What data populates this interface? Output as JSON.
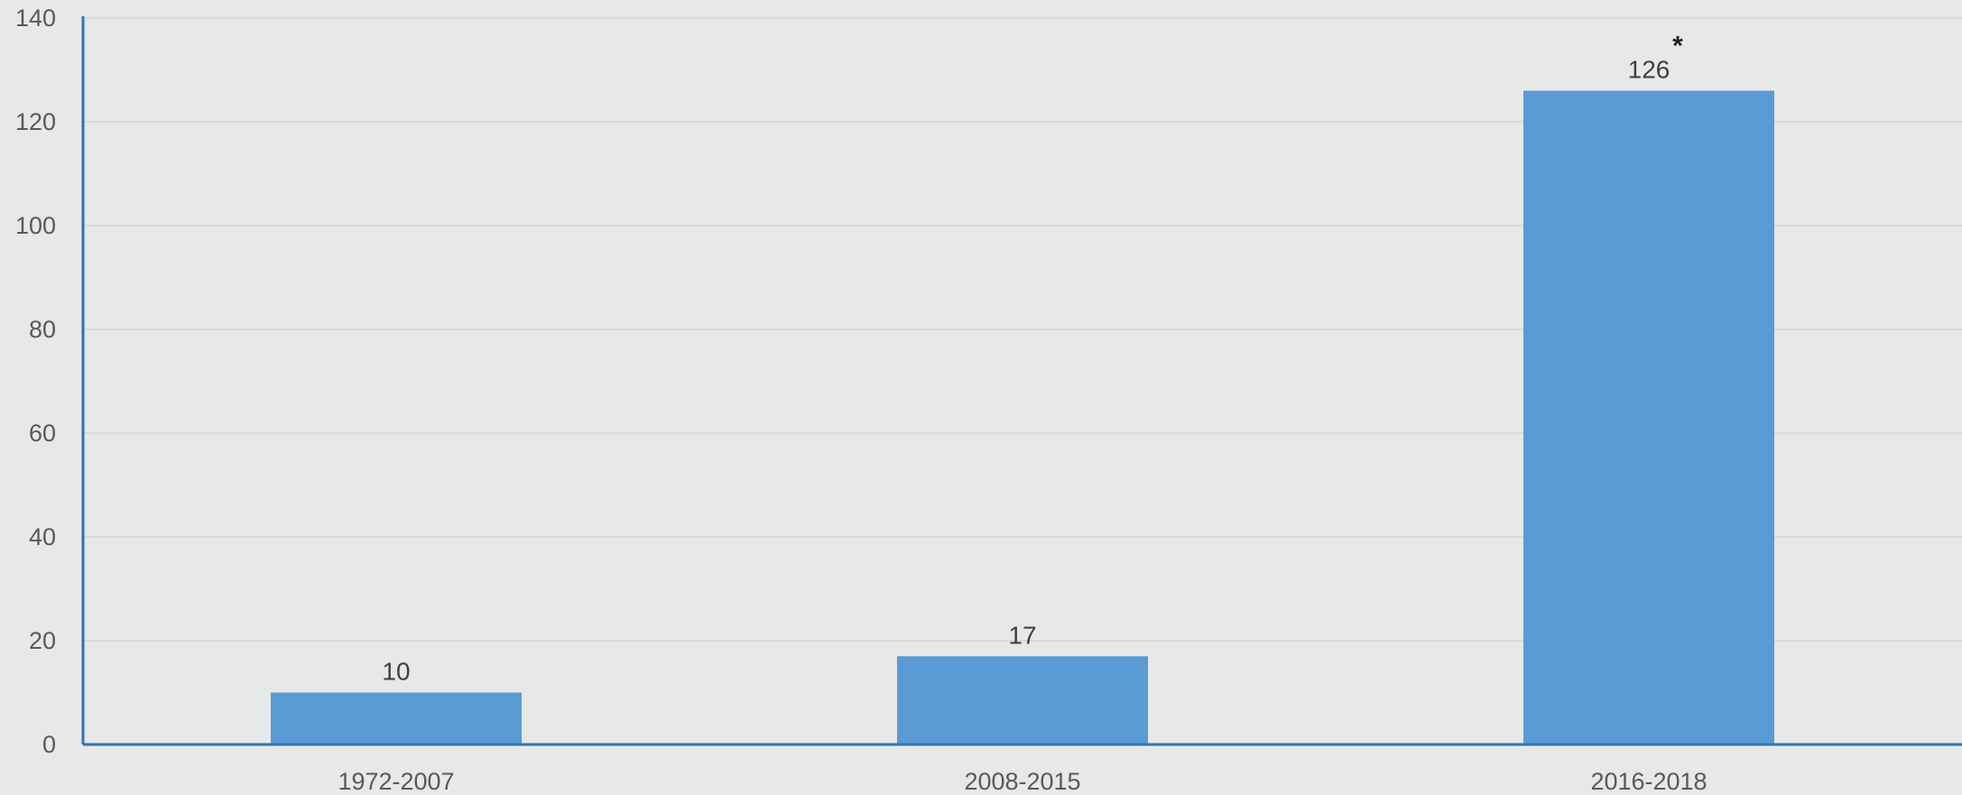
{
  "chart_data": {
    "type": "bar",
    "categories": [
      "1972-2007",
      "2008-2015",
      "2016-2018"
    ],
    "values": [
      10,
      17,
      126
    ],
    "data_labels": [
      "10",
      "17",
      "126"
    ],
    "annotations": [
      {
        "category": "2016-2018",
        "text": "*"
      }
    ],
    "title": "",
    "xlabel": "",
    "ylabel": "",
    "ylim": [
      0,
      140
    ],
    "yticks": [
      0,
      20,
      40,
      60,
      80,
      100,
      120,
      140
    ],
    "grid": true,
    "legend": "none"
  },
  "colors": {
    "background": "#e7e8e8",
    "bar": "#5b9bd5",
    "axis": "#2e75b6",
    "grid": "#d9d9d9"
  }
}
